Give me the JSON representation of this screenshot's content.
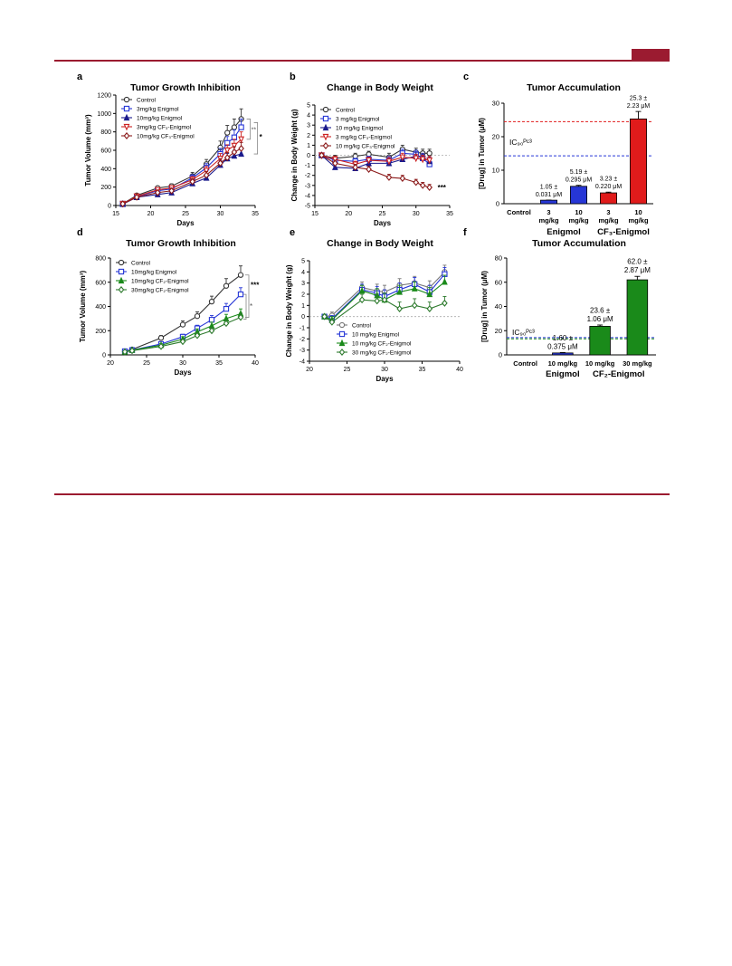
{
  "colors": {
    "rule": "#9b1b30",
    "black": "#333333",
    "blue": "#2636d6",
    "navy": "#1a1a8c",
    "red": "#cc2222",
    "darkred": "#8b1a1a",
    "green": "#1a8a1a",
    "darkgreen": "#2d7a2d",
    "gray": "#777777"
  },
  "chart_data": [
    {
      "id": "a",
      "panel_label": "a",
      "type": "line",
      "title": "Tumor Growth Inhibition",
      "xlabel": "Days",
      "ylabel": "Tumor Volume (mm³)",
      "xlim": [
        15,
        35
      ],
      "ylim": [
        0,
        1200
      ],
      "xticks": [
        15,
        20,
        25,
        30,
        35
      ],
      "yticks": [
        0,
        200,
        400,
        600,
        800,
        1000,
        1200
      ],
      "legend_position": "top-left",
      "annotations": [
        {
          "text": "**"
        },
        {
          "text": "*"
        }
      ],
      "series": [
        {
          "name": "Control",
          "color": "#333333",
          "marker": "circle",
          "x": [
            16,
            18,
            21,
            23,
            26,
            28,
            30,
            31,
            32,
            33
          ],
          "y": [
            20,
            110,
            190,
            210,
            320,
            450,
            630,
            790,
            850,
            940
          ],
          "err": [
            10,
            15,
            20,
            25,
            40,
            50,
            70,
            80,
            90,
            110
          ]
        },
        {
          "name": "3mg/kg Enigmol",
          "color": "#2636d6",
          "marker": "square",
          "x": [
            16,
            18,
            21,
            23,
            26,
            28,
            30,
            31,
            32,
            33
          ],
          "y": [
            20,
            95,
            160,
            180,
            300,
            410,
            560,
            680,
            740,
            850
          ],
          "err": [
            10,
            15,
            20,
            25,
            35,
            45,
            60,
            70,
            80,
            90
          ]
        },
        {
          "name": "10mg/kg Enigmol",
          "color": "#1a1a8c",
          "marker": "triangle",
          "x": [
            16,
            18,
            21,
            23,
            26,
            28,
            30,
            31,
            32,
            33
          ],
          "y": [
            15,
            90,
            120,
            140,
            240,
            300,
            440,
            510,
            540,
            560
          ],
          "err": [
            8,
            12,
            15,
            20,
            30,
            40,
            50,
            55,
            60,
            70
          ]
        },
        {
          "name": "3mg/kg CF₃-Enigmol",
          "color": "#cc2222",
          "marker": "triangle-down",
          "x": [
            16,
            18,
            21,
            23,
            26,
            28,
            30,
            31,
            32,
            33
          ],
          "y": [
            20,
            100,
            170,
            190,
            280,
            380,
            510,
            600,
            650,
            720
          ],
          "err": [
            10,
            15,
            20,
            25,
            35,
            45,
            55,
            60,
            70,
            80
          ]
        },
        {
          "name": "10mg/kg CF₃-Enigmol",
          "color": "#8b1a1a",
          "marker": "diamond",
          "x": [
            16,
            18,
            21,
            23,
            26,
            28,
            30,
            31,
            32,
            33
          ],
          "y": [
            18,
            90,
            140,
            160,
            260,
            330,
            460,
            520,
            580,
            620
          ],
          "err": [
            8,
            12,
            18,
            22,
            30,
            40,
            50,
            55,
            60,
            65
          ]
        }
      ]
    },
    {
      "id": "b",
      "panel_label": "b",
      "type": "line",
      "title": "Change in Body Weight",
      "xlabel": "Days",
      "ylabel": "Change in Body Weight (g)",
      "xlim": [
        15,
        35
      ],
      "ylim": [
        -5,
        5
      ],
      "xticks": [
        15,
        20,
        25,
        30,
        35
      ],
      "yticks": [
        -5,
        -4,
        -3,
        -2,
        -1,
        0,
        1,
        2,
        3,
        4,
        5
      ],
      "legend_position": "top-left",
      "zero_line": true,
      "annotations": [
        {
          "text": "***"
        }
      ],
      "series": [
        {
          "name": "Control",
          "color": "#333333",
          "marker": "circle",
          "x": [
            16,
            18,
            21,
            23,
            26,
            28,
            30,
            31,
            32
          ],
          "y": [
            0,
            -0.3,
            -0.1,
            0.1,
            -0.2,
            0.6,
            0.3,
            0.2,
            0.2
          ],
          "err": [
            0.2,
            0.3,
            0.3,
            0.3,
            0.4,
            0.4,
            0.4,
            0.4,
            0.4
          ]
        },
        {
          "name": "3 mg/kg Enigmol",
          "color": "#2636d6",
          "marker": "square",
          "x": [
            16,
            18,
            21,
            23,
            26,
            28,
            30,
            31,
            32
          ],
          "y": [
            0,
            -0.5,
            -0.6,
            -0.4,
            -0.5,
            0.2,
            0.1,
            -0.3,
            -0.9
          ],
          "err": [
            0.2,
            0.3,
            0.3,
            0.3,
            0.4,
            0.4,
            0.4,
            0.4,
            0.4
          ]
        },
        {
          "name": "10 mg/kg Enigmol",
          "color": "#1a1a8c",
          "marker": "triangle",
          "x": [
            16,
            18,
            21,
            23,
            26,
            28,
            30,
            31,
            32
          ],
          "y": [
            0,
            -1.2,
            -1.3,
            -0.8,
            -0.8,
            -0.4,
            -0.1,
            -0.2,
            -0.6
          ],
          "err": [
            0.2,
            0.3,
            0.3,
            0.3,
            0.4,
            0.4,
            0.4,
            0.4,
            0.4
          ]
        },
        {
          "name": "3 mg/kg CF₃-Enigmol",
          "color": "#cc2222",
          "marker": "triangle-down",
          "x": [
            16,
            18,
            21,
            23,
            26,
            28,
            30,
            31,
            32
          ],
          "y": [
            0,
            -0.4,
            -0.9,
            -0.5,
            -0.6,
            -0.2,
            -0.3,
            -0.4,
            -0.5
          ],
          "err": [
            0.2,
            0.3,
            0.3,
            0.3,
            0.4,
            0.4,
            0.4,
            0.4,
            0.4
          ]
        },
        {
          "name": "10 mg/kg CF₃-Enigmol",
          "color": "#8b1a1a",
          "marker": "diamond",
          "x": [
            16,
            18,
            21,
            23,
            26,
            28,
            30,
            31,
            32
          ],
          "y": [
            0,
            -0.8,
            -1.2,
            -1.4,
            -2.2,
            -2.3,
            -2.7,
            -3.0,
            -3.2
          ],
          "err": [
            0.2,
            0.3,
            0.3,
            0.3,
            0.3,
            0.3,
            0.3,
            0.3,
            0.3
          ]
        }
      ]
    },
    {
      "id": "c",
      "panel_label": "c",
      "type": "bar",
      "title": "Tumor Accumulation",
      "ylabel": "[Drug] in Tumor (μM)",
      "ylim": [
        0,
        30
      ],
      "yticks": [
        0,
        10,
        20,
        30
      ],
      "categories": [
        [
          "Control"
        ],
        [
          "3",
          "mg/kg"
        ],
        [
          "10",
          "mg/kg"
        ],
        [
          "3",
          "mg/kg"
        ],
        [
          "10",
          "mg/kg"
        ]
      ],
      "values": [
        0,
        1.05,
        5.19,
        3.23,
        25.3
      ],
      "errors": [
        0,
        0.031,
        0.295,
        0.22,
        2.23
      ],
      "bar_colors": [
        "#ffffff",
        "#2636d6",
        "#2636d6",
        "#e01b1b",
        "#e01b1b"
      ],
      "bar_labels": [
        [],
        [
          "1.05 ±",
          "0.031 μM"
        ],
        [
          "5.19 ±",
          "0.295 μM"
        ],
        [
          "3.23 ±",
          "0.220 μM"
        ],
        [
          "25.3 ±",
          "2.23 μM"
        ]
      ],
      "groups": [
        {
          "label": "Enigmol",
          "from": 1,
          "to": 2
        },
        {
          "label": "CF₃-Enigmol",
          "from": 3,
          "to": 4
        }
      ],
      "ref_lines": [
        {
          "value": 24.5,
          "color": "#e01b1b"
        },
        {
          "value": 14.3,
          "color": "#2636d6",
          "label": "IC₉₀ᴾᶜ³"
        }
      ]
    },
    {
      "id": "d",
      "panel_label": "d",
      "type": "line",
      "title": "Tumor Growth Inhibition",
      "xlabel": "Days",
      "ylabel": "Tumor Volume (mm³)",
      "xlim": [
        20,
        40
      ],
      "ylim": [
        0,
        800
      ],
      "xticks": [
        20,
        25,
        30,
        35,
        40
      ],
      "yticks": [
        0,
        200,
        400,
        600,
        800
      ],
      "legend_position": "top-left",
      "annotations": [
        {
          "text": "***"
        },
        {
          "text": "*"
        }
      ],
      "series": [
        {
          "name": "Control",
          "color": "#333333",
          "marker": "circle",
          "x": [
            22,
            23,
            27,
            30,
            32,
            34,
            36,
            38
          ],
          "y": [
            30,
            45,
            140,
            250,
            320,
            440,
            570,
            660
          ],
          "err": [
            10,
            10,
            20,
            30,
            35,
            45,
            60,
            75
          ]
        },
        {
          "name": "10mg/kg Enigmol",
          "color": "#2636d6",
          "marker": "square",
          "x": [
            22,
            23,
            27,
            30,
            32,
            34,
            36,
            38
          ],
          "y": [
            30,
            40,
            90,
            150,
            220,
            290,
            380,
            500
          ],
          "err": [
            10,
            10,
            15,
            20,
            25,
            35,
            45,
            55
          ]
        },
        {
          "name": "10mg/kg CF₂-Enigmol",
          "color": "#1a8a1a",
          "marker": "triangle",
          "x": [
            22,
            23,
            27,
            30,
            32,
            34,
            36,
            38
          ],
          "y": [
            25,
            40,
            80,
            130,
            190,
            240,
            300,
            340
          ],
          "err": [
            8,
            10,
            15,
            20,
            25,
            30,
            35,
            40
          ]
        },
        {
          "name": "30mg/kg CF₂-Enigmol",
          "color": "#2d7a2d",
          "marker": "diamond",
          "x": [
            22,
            23,
            27,
            30,
            32,
            34,
            36,
            38
          ],
          "y": [
            25,
            35,
            70,
            110,
            160,
            200,
            260,
            310
          ],
          "err": [
            8,
            10,
            12,
            18,
            22,
            25,
            30,
            35
          ]
        }
      ]
    },
    {
      "id": "e",
      "panel_label": "e",
      "type": "line",
      "title": "Change in Body Weight",
      "xlabel": "Days",
      "ylabel": "Change in Body Weight (g)",
      "xlim": [
        20,
        40
      ],
      "ylim": [
        -4,
        5
      ],
      "xticks": [
        20,
        25,
        30,
        35,
        40
      ],
      "yticks": [
        -4,
        -3,
        -2,
        -1,
        0,
        1,
        2,
        3,
        4,
        5
      ],
      "legend_position": "bottom-left",
      "zero_line": true,
      "series": [
        {
          "name": "Control",
          "color": "#777777",
          "marker": "circle",
          "x": [
            22,
            23,
            27,
            29,
            30,
            32,
            34,
            36,
            38
          ],
          "y": [
            0,
            0.1,
            2.6,
            2.3,
            2.2,
            2.8,
            3.0,
            2.6,
            4.0
          ],
          "err": [
            0.2,
            0.3,
            0.5,
            0.6,
            0.6,
            0.6,
            0.6,
            0.6,
            0.6
          ]
        },
        {
          "name": "10 mg/kg Enigmol",
          "color": "#2636d6",
          "marker": "square",
          "x": [
            22,
            23,
            27,
            29,
            30,
            32,
            34,
            36,
            38
          ],
          "y": [
            0,
            -0.2,
            2.4,
            2.1,
            1.8,
            2.4,
            2.9,
            2.2,
            3.8
          ],
          "err": [
            0.2,
            0.3,
            0.5,
            0.6,
            0.6,
            0.6,
            0.6,
            0.6,
            0.6
          ]
        },
        {
          "name": "10 mg/kg CF₂-Enigmol",
          "color": "#1a8a1a",
          "marker": "triangle",
          "x": [
            22,
            23,
            27,
            29,
            30,
            32,
            34,
            36,
            38
          ],
          "y": [
            0,
            -0.3,
            2.3,
            1.9,
            1.5,
            2.2,
            2.5,
            2.0,
            3.1
          ],
          "err": [
            0.2,
            0.3,
            0.5,
            0.6,
            0.6,
            0.6,
            0.6,
            0.6,
            0.6
          ]
        },
        {
          "name": "30 mg/kg CF₂-Enigmol",
          "color": "#2d7a2d",
          "marker": "diamond",
          "x": [
            22,
            23,
            27,
            29,
            30,
            32,
            34,
            36,
            38
          ],
          "y": [
            0,
            -0.5,
            1.5,
            1.4,
            1.5,
            0.7,
            1.0,
            0.7,
            1.2
          ],
          "err": [
            0.2,
            0.3,
            0.5,
            0.6,
            0.6,
            0.6,
            0.6,
            0.6,
            0.6
          ]
        }
      ]
    },
    {
      "id": "f",
      "panel_label": "f",
      "type": "bar",
      "title": "Tumor Accumulation",
      "ylabel": "[Drug] in Tumor (μM)",
      "ylim": [
        0,
        80
      ],
      "yticks": [
        0,
        20,
        40,
        60,
        80
      ],
      "categories": [
        [
          "Control"
        ],
        [
          "10 mg/kg"
        ],
        [
          "10 mg/kg"
        ],
        [
          "30 mg/kg"
        ]
      ],
      "values": [
        0,
        1.6,
        23.6,
        62.0
      ],
      "errors": [
        0,
        0.375,
        1.06,
        2.87
      ],
      "bar_colors": [
        "#ffffff",
        "#2636d6",
        "#1a8a1a",
        "#1a8a1a"
      ],
      "bar_labels": [
        [],
        [
          "1.60 ±",
          "0.375 μM"
        ],
        [
          "23.6 ±",
          "1.06 μM"
        ],
        [
          "62.0 ±",
          "2.87 μM"
        ]
      ],
      "groups": [
        {
          "label": "Enigmol",
          "from": 1,
          "to": 1
        },
        {
          "label": "CF₂-Enigmol",
          "from": 2,
          "to": 3
        }
      ],
      "ref_lines": [
        {
          "value": 14.3,
          "color": "#2636d6",
          "label": "IC₉₀ᴾᶜ³"
        },
        {
          "value": 13.3,
          "color": "#1a8a1a"
        }
      ]
    }
  ]
}
